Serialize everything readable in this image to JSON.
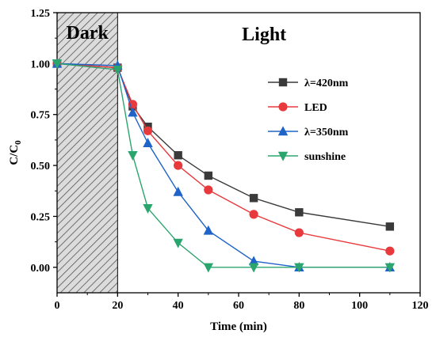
{
  "chart_data": {
    "type": "line",
    "xlabel": "Time (min)",
    "ylabel": "C/C0",
    "ylabel_main": "C/C",
    "ylabel_sub": "0",
    "xlim": [
      0,
      120
    ],
    "ylim": [
      -0.125,
      1.25
    ],
    "xticks": [
      0,
      20,
      40,
      60,
      80,
      100,
      120
    ],
    "yticks": [
      0.0,
      0.25,
      0.5,
      0.75,
      1.0,
      1.25
    ],
    "ytick_labels": [
      "0.00",
      "0.25",
      "0.50",
      "0.75",
      "1.00",
      "1.25"
    ],
    "grid": false,
    "legend_position": "right",
    "regions": [
      {
        "label": "Dark",
        "x_range": [
          0,
          20
        ],
        "pattern": "hatched"
      },
      {
        "label": "Light",
        "x_range": [
          20,
          120
        ]
      }
    ],
    "series": [
      {
        "name": "λ=420nm",
        "color": "#3a3a3a",
        "marker": "square",
        "x": [
          0,
          20,
          25,
          30,
          40,
          50,
          65,
          80,
          110
        ],
        "y": [
          1.0,
          0.98,
          0.79,
          0.69,
          0.55,
          0.45,
          0.34,
          0.27,
          0.2
        ]
      },
      {
        "name": "LED",
        "color": "#e8393c",
        "marker": "circle",
        "x": [
          0,
          20,
          25,
          30,
          40,
          50,
          65,
          80,
          110
        ],
        "y": [
          1.0,
          0.98,
          0.8,
          0.67,
          0.5,
          0.38,
          0.26,
          0.17,
          0.08
        ]
      },
      {
        "name": "λ=350nm",
        "color": "#1f63c8",
        "marker": "triangle-up",
        "x": [
          0,
          20,
          25,
          30,
          40,
          50,
          65,
          80,
          110
        ],
        "y": [
          1.0,
          0.99,
          0.76,
          0.61,
          0.37,
          0.18,
          0.03,
          0.0,
          0.0
        ]
      },
      {
        "name": "sunshine",
        "color": "#2ba56e",
        "marker": "triangle-down",
        "x": [
          0,
          20,
          25,
          30,
          40,
          50,
          65,
          80,
          110
        ],
        "y": [
          1.0,
          0.97,
          0.55,
          0.29,
          0.12,
          0.0,
          0.0,
          0.0,
          0.0
        ]
      }
    ]
  }
}
